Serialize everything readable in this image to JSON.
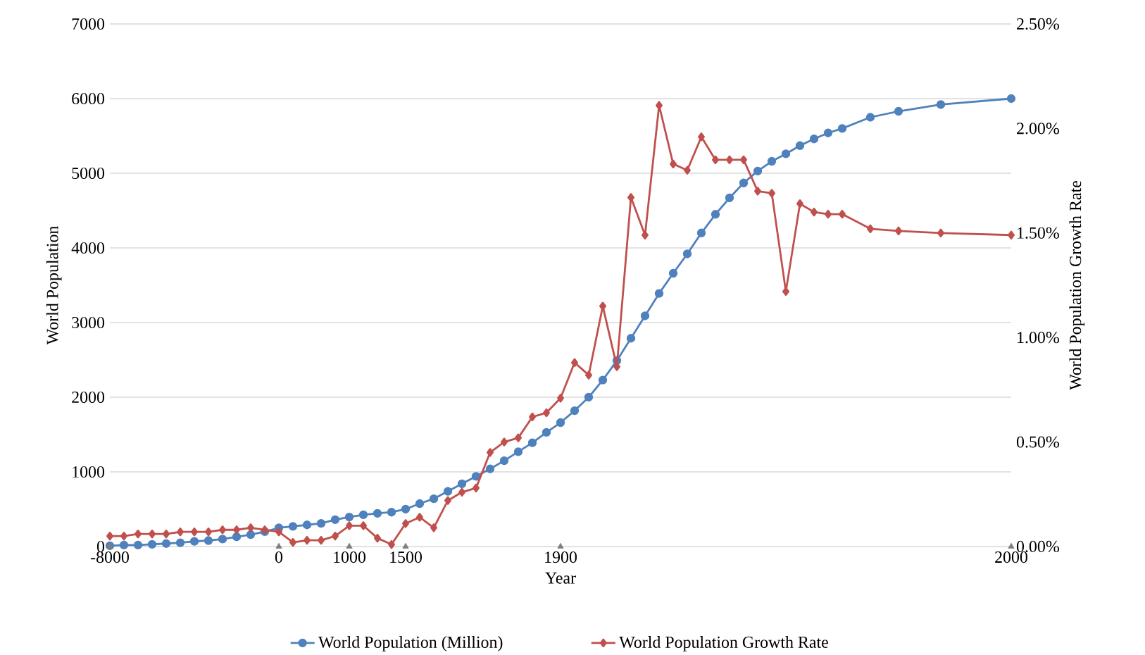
{
  "chart_data": {
    "type": "line",
    "xlabel": "Year",
    "ylabel": "World Population",
    "y2label": "World Population Growth Rate",
    "categories": [
      "-8000",
      null,
      null,
      null,
      null,
      null,
      null,
      null,
      null,
      null,
      null,
      null,
      "0",
      null,
      null,
      null,
      null,
      "1000",
      null,
      null,
      null,
      "1500",
      null,
      null,
      null,
      null,
      null,
      null,
      null,
      null,
      null,
      null,
      "1900",
      null,
      null,
      null,
      null,
      null,
      null,
      null,
      null,
      null,
      null,
      null,
      null,
      null,
      null,
      null,
      null,
      null,
      null,
      null,
      null,
      null,
      null,
      null,
      null,
      null,
      null,
      null,
      null,
      null,
      null,
      null,
      "2000"
    ],
    "ylim": [
      0,
      7000
    ],
    "yticks": [
      0,
      1000,
      2000,
      3000,
      4000,
      5000,
      6000,
      7000
    ],
    "y2lim": [
      0,
      2.5
    ],
    "y2ticks": [
      {
        "value": 0,
        "label": "0.00%"
      },
      {
        "value": 0.5,
        "label": "0.50%"
      },
      {
        "value": 1,
        "label": "1.00%"
      },
      {
        "value": 1.5,
        "label": "1.50%"
      },
      {
        "value": 2,
        "label": "2.00%"
      },
      {
        "value": 2.5,
        "label": "2.50%"
      }
    ],
    "grid": "y",
    "legend": "bottom",
    "series": [
      {
        "name": "World Population (Million)",
        "marker": "circle",
        "color": "#4f81bd",
        "values": [
          10,
          20,
          20,
          30,
          40,
          50,
          70,
          80,
          100,
          130,
          160,
          200,
          250,
          270,
          290,
          310,
          360,
          395,
          425,
          445,
          460,
          500,
          575,
          640,
          740,
          840,
          940,
          1040,
          1150,
          1270,
          1390,
          1530,
          1660,
          1820,
          2000,
          2230,
          2490,
          2790,
          3090,
          3390,
          3660,
          3920,
          4200,
          4450,
          4670,
          4870,
          5030,
          5160,
          5260,
          5370,
          5460,
          5540,
          5600,
          null,
          5750,
          null,
          5830,
          null,
          null,
          5920,
          null,
          null,
          null,
          null,
          6000
        ]
      },
      {
        "name": "World Population Growth Rate",
        "marker": "diamond",
        "axis": "y2",
        "color": "#c0504d",
        "values": [
          0.05,
          0.05,
          0.06,
          0.06,
          0.06,
          0.07,
          0.07,
          0.07,
          0.08,
          0.08,
          0.09,
          0.08,
          0.07,
          0.02,
          0.03,
          0.03,
          0.05,
          0.1,
          0.1,
          0.04,
          0.01,
          0.11,
          0.14,
          0.09,
          0.22,
          0.26,
          0.28,
          0.45,
          0.5,
          0.52,
          0.62,
          0.64,
          0.71,
          0.88,
          0.82,
          1.15,
          0.86,
          1.67,
          1.49,
          2.11,
          1.83,
          1.8,
          1.96,
          1.85,
          1.85,
          1.85,
          1.7,
          1.69,
          1.22,
          1.64,
          1.6,
          1.59,
          1.59,
          null,
          1.52,
          null,
          1.51,
          null,
          null,
          1.5,
          null,
          null,
          null,
          null,
          1.49
        ]
      },
      {
        "type": "scatter",
        "marker": "triangle",
        "color": "#7f7f7f",
        "values": [
          0,
          null,
          null,
          null,
          null,
          null,
          null,
          null,
          null,
          null,
          null,
          null,
          0,
          null,
          null,
          null,
          null,
          0,
          null,
          null,
          null,
          0,
          null,
          null,
          null,
          null,
          null,
          null,
          null,
          null,
          null,
          null,
          0,
          null,
          null,
          null,
          null,
          null,
          null,
          null,
          null,
          null,
          null,
          null,
          null,
          null,
          null,
          null,
          null,
          null,
          null,
          null,
          null,
          null,
          null,
          null,
          null,
          null,
          null,
          null,
          null,
          null,
          null,
          null,
          0
        ]
      }
    ]
  }
}
